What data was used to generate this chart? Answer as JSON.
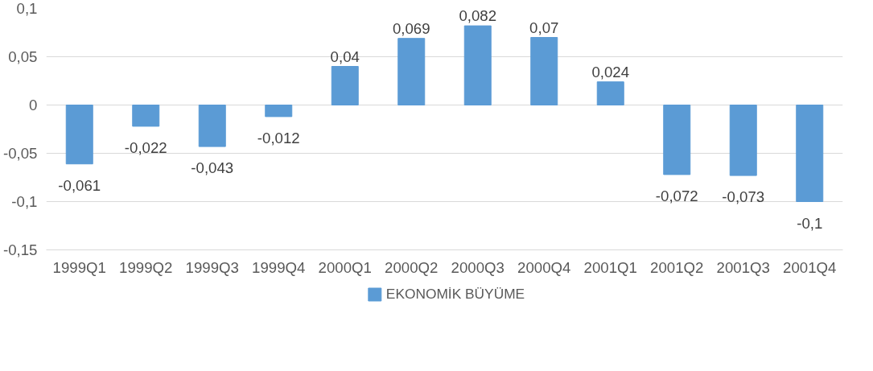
{
  "chart_data": {
    "type": "bar",
    "categories": [
      "1999Q1",
      "1999Q2",
      "1999Q3",
      "1999Q4",
      "2000Q1",
      "2000Q2",
      "2000Q3",
      "2000Q4",
      "2001Q1",
      "2001Q2",
      "2001Q3",
      "2001Q4"
    ],
    "series": [
      {
        "name": "EKONOMİK BÜYÜME",
        "color": "#5b9bd5",
        "values": [
          -0.061,
          -0.022,
          -0.043,
          -0.012,
          0.04,
          0.069,
          0.082,
          0.07,
          0.024,
          -0.072,
          -0.073,
          -0.1
        ],
        "value_labels": [
          "-0,061",
          "-0,022",
          "-0,043",
          "-0,012",
          "0,04",
          "0,069",
          "0,082",
          "0,07",
          "0,024",
          "-0,072",
          "-0,073",
          "-0,1"
        ]
      }
    ],
    "ylim": [
      -0.15,
      0.1
    ],
    "yticks": [
      {
        "value": -0.15,
        "label": "-0,15"
      },
      {
        "value": -0.1,
        "label": "-0,1"
      },
      {
        "value": -0.05,
        "label": "-0,05"
      },
      {
        "value": 0,
        "label": "0"
      },
      {
        "value": 0.05,
        "label": "0,05"
      },
      {
        "value": 0.1,
        "label": "0,1"
      }
    ],
    "grid": "y",
    "legend": "bottom"
  }
}
